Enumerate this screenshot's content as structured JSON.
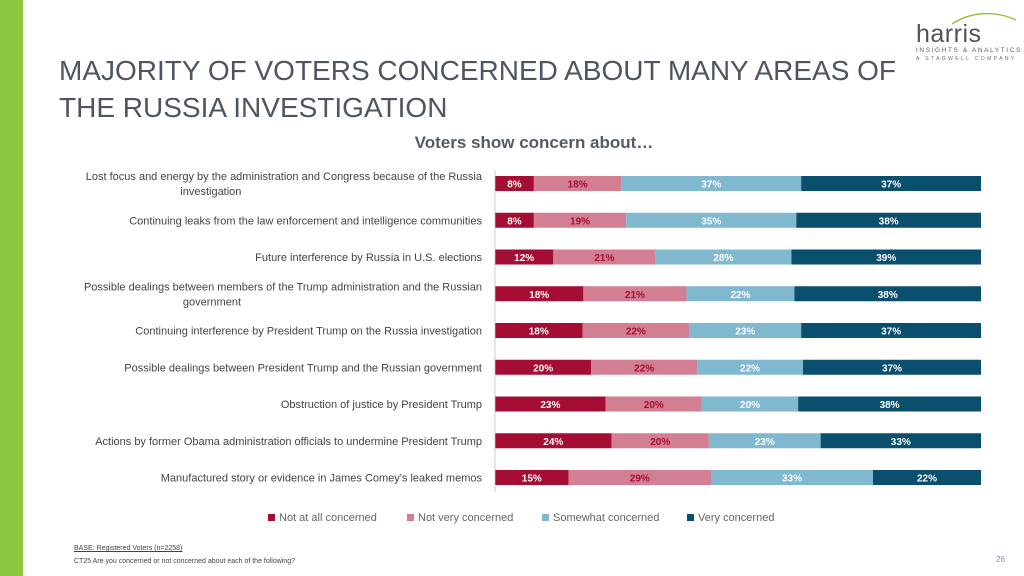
{
  "brand": {
    "name": "harris",
    "tagline": "INSIGHTS & ANALYTICS",
    "company": "A STAGWELL COMPANY",
    "accent_color": "#8dc63f",
    "text_color": "#4f5358"
  },
  "title": "MAJORITY OF VOTERS CONCERNED ABOUT MANY AREAS OF THE RUSSIA INVESTIGATION",
  "footer": {
    "base": "BASE: Registered Voters (n=2258)",
    "question": "CT25 Are you concerned or not concerned about each of the following?",
    "page_number": "26"
  },
  "chart_data": {
    "type": "bar",
    "orientation": "horizontal",
    "stacked": true,
    "title": "Voters show concern about…",
    "legend_position": "bottom",
    "categories": [
      "Lost focus and energy by the administration and Congress because of the Russia investigation",
      "Continuing leaks from the law enforcement and intelligence communities",
      "Future interference by Russia in U.S. elections",
      "Possible dealings between members of the Trump administration and the Russian government",
      "Continuing interference by President Trump on the Russia investigation",
      "Possible dealings between President Trump and the Russian government",
      "Obstruction of justice by President Trump",
      "Actions by former Obama administration officials to undermine President Trump",
      "Manufactured story or evidence in James Comey's leaked memos"
    ],
    "category_lines": [
      [
        "Lost focus and energy by the administration and Congress because of the Russia",
        "investigation"
      ],
      [
        "Continuing leaks from the law enforcement and intelligence communities"
      ],
      [
        "Future interference by Russia in U.S. elections"
      ],
      [
        "Possible dealings between members of the Trump administration and the Russian",
        "government"
      ],
      [
        "Continuing interference by President Trump on the Russia investigation"
      ],
      [
        "Possible dealings between President Trump and the Russian government"
      ],
      [
        "Obstruction of justice by President Trump"
      ],
      [
        "Actions by former Obama administration officials to undermine President Trump"
      ],
      [
        "Manufactured story or evidence in James Comey's leaked memos"
      ]
    ],
    "series": [
      {
        "name": "Not at all concerned",
        "color": "#a50d34",
        "label_color": "#ffffff",
        "values": [
          8,
          8,
          12,
          18,
          18,
          20,
          23,
          24,
          15
        ]
      },
      {
        "name": "Not very concerned",
        "color": "#d27f93",
        "label_color": "#a50d34",
        "values": [
          18,
          19,
          21,
          21,
          22,
          22,
          20,
          20,
          29
        ]
      },
      {
        "name": "Somewhat concerned",
        "color": "#7fb8cf",
        "label_color": "#ffffff",
        "values": [
          37,
          35,
          28,
          22,
          23,
          22,
          20,
          23,
          33
        ]
      },
      {
        "name": "Very concerned",
        "color": "#0a4f6e",
        "label_color": "#ffffff",
        "values": [
          37,
          38,
          39,
          38,
          37,
          37,
          38,
          33,
          22
        ]
      }
    ],
    "unit": "%"
  }
}
